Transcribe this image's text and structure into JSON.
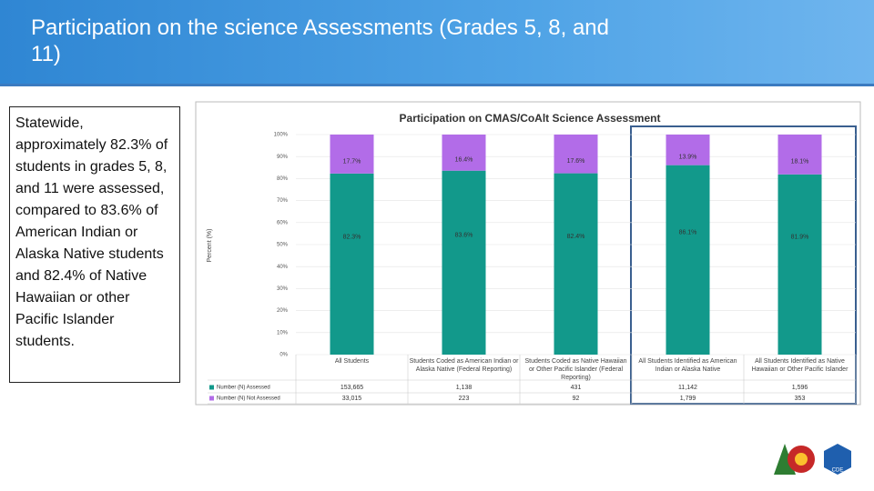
{
  "slide": {
    "title": "Participation on the science Assessments (Grades 5, 8, and 11)",
    "body": "Statewide, approximately 82.3% of students in grades 5, 8, and 11 were assessed, compared to 83.6% of American Indian or Alaska Native students and 82.4% of Native Hawaiian or other Pacific Islander students."
  },
  "chart_data": {
    "type": "stacked-bar",
    "title": "Participation on CMAS/CoAlt Science Assessment",
    "y_label": "Percent (%)",
    "categories": [
      "All Students",
      "Students Coded as American Indian or Alaska Native (Federal Reporting)",
      "Students Coded as Native Hawaiian or Other Pacific Islander (Federal Reporting)",
      "All Students Identified as American Indian or Alaska Native",
      "All Students Identified as Native Hawaiian or Other Pacific Islander"
    ],
    "series": [
      {
        "name": "Number (N) Assessed",
        "color": "#12998b",
        "values": [
          82.3,
          83.6,
          82.4,
          86.1,
          81.9
        ],
        "value_labels": [
          "82.3%",
          "83.6%",
          "82.4%",
          "86.1%",
          "81.9%"
        ],
        "counts": [
          "153,665",
          "1,138",
          "431",
          "11,142",
          "1,596"
        ]
      },
      {
        "name": "Number (N) Not Assessed",
        "color": "#b26ce8",
        "values": [
          17.7,
          16.4,
          17.6,
          13.9,
          18.1
        ],
        "value_labels": [
          "17.7%",
          "16.4%",
          "17.6%",
          "13.9%",
          "18.1%"
        ],
        "counts": [
          "33,015",
          "223",
          "92",
          "1,799",
          "353"
        ]
      }
    ],
    "ylim": [
      0,
      100
    ],
    "yticks": [
      {
        "value": 0,
        "label": "0%"
      },
      {
        "value": 10,
        "label": "10%"
      },
      {
        "value": 20,
        "label": "20%"
      },
      {
        "value": 30,
        "label": "30%"
      },
      {
        "value": 40,
        "label": "40%"
      },
      {
        "value": 50,
        "label": "50%"
      },
      {
        "value": 60,
        "label": "60%"
      },
      {
        "value": 70,
        "label": "70%"
      },
      {
        "value": 80,
        "label": "80%"
      },
      {
        "value": 90,
        "label": "90%"
      },
      {
        "value": 100,
        "label": "100%"
      }
    ]
  }
}
